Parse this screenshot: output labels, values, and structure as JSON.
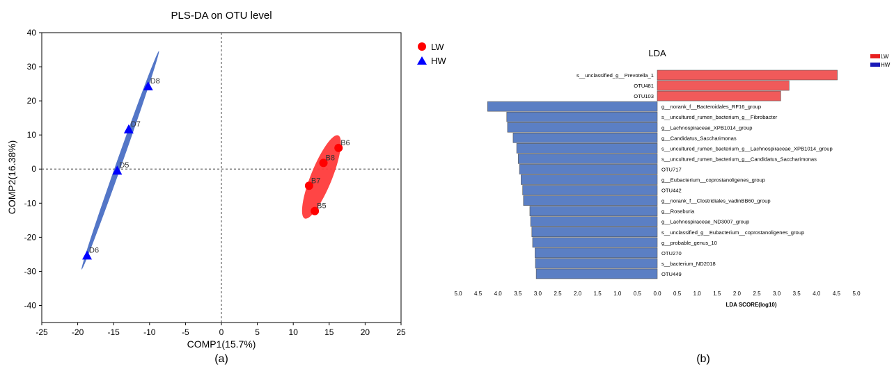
{
  "chart_data": [
    {
      "type": "scatter",
      "title": "PLS-DA on OTU level",
      "xlabel": "COMP1(15.7%)",
      "ylabel": "COMP2(16.38%)",
      "xlim": [
        -25,
        25
      ],
      "ylim": [
        -45,
        40
      ],
      "xticks": [
        -25,
        -20,
        -15,
        -10,
        -5,
        0,
        5,
        10,
        15,
        20,
        25
      ],
      "yticks": [
        -40,
        -30,
        -20,
        -10,
        0,
        10,
        20,
        30,
        40
      ],
      "zero_lines": true,
      "legend_position": "top-right, outside plot",
      "caption": "(a)",
      "series": [
        {
          "name": "LW",
          "marker": "circle",
          "color": "#ff0000",
          "ellipse_color": "#ff3b3b",
          "points": [
            {
              "label": "B6",
              "x": 16.3,
              "y": 6.2
            },
            {
              "label": "B8",
              "x": 14.2,
              "y": 1.8
            },
            {
              "label": "B7",
              "x": 12.2,
              "y": -4.9
            },
            {
              "label": "B5",
              "x": 13.0,
              "y": -12.3
            }
          ]
        },
        {
          "name": "HW",
          "marker": "triangle",
          "color": "#0000ff",
          "ellipse_color": "#4a6fc4",
          "points": [
            {
              "label": "D8",
              "x": -10.2,
              "y": 24.3
            },
            {
              "label": "D7",
              "x": -12.9,
              "y": 11.7
            },
            {
              "label": "D5",
              "x": -14.5,
              "y": -0.4
            },
            {
              "label": "D6",
              "x": -18.7,
              "y": -25.3
            }
          ]
        }
      ]
    },
    {
      "type": "bar",
      "orientation": "horizontal",
      "title": "LDA",
      "xlabel": "LDA SCORE(log10)",
      "xlim": [
        -5,
        5
      ],
      "xticks": [
        "5.0",
        "4.5",
        "4.0",
        "3.5",
        "3.0",
        "2.5",
        "2.0",
        "1.5",
        "1.0",
        "0.5",
        "0.0",
        "0.5",
        "1.0",
        "1.5",
        "2.0",
        "2.5",
        "3.0",
        "3.5",
        "4.0",
        "4.5",
        "5.0"
      ],
      "caption": "(b)",
      "legend": [
        {
          "name": "LW",
          "color": "#f05a5a"
        },
        {
          "name": "HW",
          "color": "#5b7fc4"
        }
      ],
      "bars": [
        {
          "label": "s__unclassified_g__Prevotella_1",
          "group": "LW",
          "value": 4.52
        },
        {
          "label": "OTU481",
          "group": "LW",
          "value": 3.31
        },
        {
          "label": "OTU103",
          "group": "LW",
          "value": 3.1
        },
        {
          "label": "g__norank_f__Bacteroidales_RF16_group",
          "group": "HW",
          "value": 4.26
        },
        {
          "label": "s__uncultured_rumen_bacterium_g__Fibrobacter",
          "group": "HW",
          "value": 3.78
        },
        {
          "label": "g__Lachnospiraceae_XPB1014_group",
          "group": "HW",
          "value": 3.76
        },
        {
          "label": "g__Candidatus_Saccharimonas",
          "group": "HW",
          "value": 3.62
        },
        {
          "label": "s__uncultured_rumen_bacterium_g__Lachnospiraceae_XPB1014_group",
          "group": "HW",
          "value": 3.53
        },
        {
          "label": "s__uncultured_rumen_bacterium_g__Candidatus_Saccharimonas",
          "group": "HW",
          "value": 3.49
        },
        {
          "label": "OTU717",
          "group": "HW",
          "value": 3.46
        },
        {
          "label": "g__Eubacterium__coprostanoligenes_group",
          "group": "HW",
          "value": 3.42
        },
        {
          "label": "OTU442",
          "group": "HW",
          "value": 3.38
        },
        {
          "label": "g__norank_f__Clostridiales_vadinBB60_group",
          "group": "HW",
          "value": 3.36
        },
        {
          "label": "g__Roseburia",
          "group": "HW",
          "value": 3.2
        },
        {
          "label": "g__Lachnospiraceae_ND3007_group",
          "group": "HW",
          "value": 3.18
        },
        {
          "label": "s__unclassified_g__Eubacterium__coprostanoligenes_group",
          "group": "HW",
          "value": 3.15
        },
        {
          "label": "g__probable_genus_10",
          "group": "HW",
          "value": 3.13
        },
        {
          "label": "OTU270",
          "group": "HW",
          "value": 3.07
        },
        {
          "label": "s__bacterium_ND2018",
          "group": "HW",
          "value": 3.06
        },
        {
          "label": "OTU449",
          "group": "HW",
          "value": 3.04
        }
      ]
    }
  ]
}
